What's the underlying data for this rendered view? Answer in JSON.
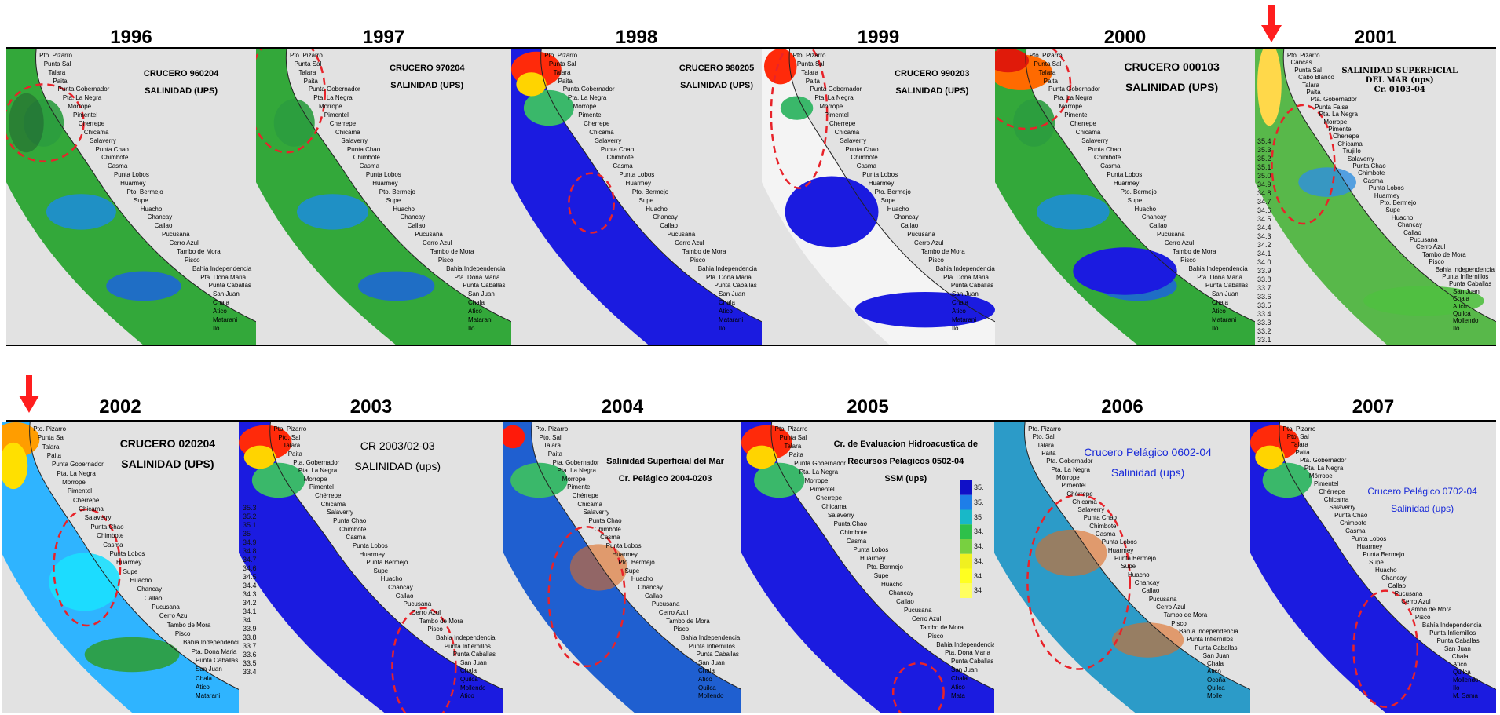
{
  "rows": [
    {
      "panels": [
        {
          "year": "1996",
          "title": [
            "CRUCERO 960204",
            "SALINIDAD (UPS)"
          ],
          "style": "bold",
          "places": [
            "Pto. Pizarro",
            "Punta Sal",
            "Talara",
            "Paita",
            "Punta Gobernador",
            "Pta. La Negra",
            "Morrope",
            "Pimentel",
            "Cherrepe",
            "Chicama",
            "Salaverry",
            "Punta Chao",
            "Chimbote",
            "Casma",
            "Punta Lobos",
            "Huarmey",
            "Pto. Bermejo",
            "Supe",
            "Huacho",
            "Chancay",
            "Callao",
            "Pucusana",
            "Cerro Azul",
            "Tambo de Mora",
            "Pisco",
            "Bahia Independencia",
            "Pta. Dona Maria",
            "Punta Caballas",
            "San Juan",
            "Chala",
            "Atico",
            "Matarani",
            "Ilo"
          ]
        },
        {
          "year": "1997",
          "title": [
            "CRUCERO 970204",
            "SALINIDAD (UPS)"
          ],
          "style": "bold",
          "places": [
            "Pto. Pizarro",
            "Punta Sal",
            "Talara",
            "Paita",
            "Punta Gobernador",
            "Pta. La Negra",
            "Morrope",
            "Pimentel",
            "Cherrepe",
            "Chicama",
            "Salaverry",
            "Punta Chao",
            "Chimbote",
            "Casma",
            "Punta Lobos",
            "Huarmey",
            "Pto. Bermejo",
            "Supe",
            "Huacho",
            "Chancay",
            "Callao",
            "Pucusana",
            "Cerro Azul",
            "Tambo de Mora",
            "Pisco",
            "Bahia Independencia",
            "Pta. Dona Maria",
            "Punta Caballas",
            "San Juan",
            "Chala",
            "Atico",
            "Matarani",
            "Ilo"
          ]
        },
        {
          "year": "1998",
          "title": [
            "CRUCERO 980205",
            "SALINIDAD (UPS)"
          ],
          "style": "bold",
          "places": [
            "Pto. Pizarro",
            "Punta Sal",
            "Talara",
            "Paita",
            "Punta Gobernador",
            "Pta. La Negra",
            "Morrope",
            "Pimentel",
            "Cherrepe",
            "Chicama",
            "Salaverry",
            "Punta Chao",
            "Chimbote",
            "Casma",
            "Punta Lobos",
            "Huarmey",
            "Pto. Bermejo",
            "Supe",
            "Huacho",
            "Chancay",
            "Callao",
            "Pucusana",
            "Cerro Azul",
            "Tambo de Mora",
            "Pisco",
            "Bahia Independencia",
            "Pta. Dona Maria",
            "Punta Caballas",
            "San Juan",
            "Chala",
            "Atico",
            "Matarani",
            "Ilo"
          ]
        },
        {
          "year": "1999",
          "title": [
            "CRUCERO 990203",
            "SALINIDAD (UPS)"
          ],
          "style": "bold",
          "places": [
            "Pto. Pizarro",
            "Punta Sal",
            "Talara",
            "Paita",
            "Punta Gobernador",
            "Pta. La Negra",
            "Morrope",
            "Pimentel",
            "Cherrepe",
            "Chicama",
            "Salaverry",
            "Punta Chao",
            "Chimbote",
            "Casma",
            "Punta Lobos",
            "Huarmey",
            "Pto. Bermejo",
            "Supe",
            "Huacho",
            "Chancay",
            "Callao",
            "Pucusana",
            "Cerro Azul",
            "Tambo de Mora",
            "Pisco",
            "Bahia Independencia",
            "Pta. Dona Maria",
            "Punta Caballas",
            "San Juan",
            "Chala",
            "Atico",
            "Matarani",
            "Ilo"
          ]
        },
        {
          "year": "2000",
          "title": [
            "CRUCERO 000103",
            "SALINIDAD (UPS)"
          ],
          "style": "big",
          "places": [
            "Pto. Pizarro",
            "Punta Sal",
            "Talara",
            "Paita",
            "Punta Gobernador",
            "Pta. La Negra",
            "Morrope",
            "Pimentel",
            "Cherrepe",
            "Chicama",
            "Salaverry",
            "Punta Chao",
            "Chimbote",
            "Casma",
            "Punta Lobos",
            "Huarmey",
            "Pto. Bermejo",
            "Supe",
            "Huacho",
            "Chancay",
            "Callao",
            "Pucusana",
            "Cerro Azul",
            "Tambo de Mora",
            "Pisco",
            "Bahia Independencia",
            "Pta. Dona Maria",
            "Punta Caballas",
            "San Juan",
            "Chala",
            "Atico",
            "Matarani",
            "Ilo"
          ]
        },
        {
          "year": "2001",
          "title": [
            "SALINIDAD SUPERFICIAL",
            "DEL MAR (ups)",
            "Cr. 0103-04"
          ],
          "style": "serif",
          "scale": [
            "35.4",
            "35.3",
            "35.2",
            "35.1",
            "35.0",
            "34.9",
            "34.8",
            "34.7",
            "34.6",
            "34.5",
            "34.4",
            "34.3",
            "34.2",
            "34.1",
            "34.0",
            "33.9",
            "33.8",
            "33.7",
            "33.6",
            "33.5",
            "33.4",
            "33.3",
            "33.2",
            "33.1"
          ],
          "places": [
            "Pto. Pizarro",
            "Cancas",
            "Punta Sal",
            "Cabo Blanco",
            "Talara",
            "Paita",
            "Pta. Gobernador",
            "Punta Falsa",
            "Pta. La Negra",
            "Morrope",
            "Pimentel",
            "Cherrepe",
            "Chicama",
            "Trujillo",
            "Salaverry",
            "Punta Chao",
            "Chimbote",
            "Casma",
            "Punta Lobos",
            "Huarmey",
            "Pto. Bermejo",
            "Supe",
            "Huacho",
            "Chancay",
            "Callao",
            "Pucusana",
            "Cerro Azul",
            "Tambo de Mora",
            "Pisco",
            "Bahia Independencia",
            "Punta Infiernillos",
            "Punta Caballas",
            "San Juan",
            "Chala",
            "Atico",
            "Quilca",
            "Mollendo",
            "Ilo"
          ]
        }
      ]
    },
    {
      "panels": [
        {
          "year": "2002",
          "title": [
            "CRUCERO 020204",
            "SALINIDAD (UPS)"
          ],
          "style": "big",
          "places": [
            "Pto. Pizarro",
            "Punta Sal",
            "Talara",
            "Paita",
            "Punta Gobernador",
            "Pta. La Negra",
            "Morrope",
            "Pimentel",
            "Chérrepe",
            "Chicama",
            "Salaverry",
            "Punta Chao",
            "Chimbote",
            "Casma",
            "Punta Lobos",
            "Huarmey",
            "Supe",
            "Huacho",
            "Chancay",
            "Callao",
            "Pucusana",
            "Cerro Azul",
            "Tambo de Mora",
            "Pisco",
            "Bahia Independencia",
            "Pta. Dona Maria",
            "Punta Caballas",
            "San Juan",
            "Chala",
            "Atico",
            "Matarani"
          ]
        },
        {
          "year": "2003",
          "title": [
            "CR 2003/02-03",
            "SALINIDAD (ups)"
          ],
          "style": "plain",
          "scale": [
            "35.3",
            "35.2",
            "35.1",
            "35",
            "34.9",
            "34.8",
            "34.7",
            "34.6",
            "34.5",
            "34.4",
            "34.3",
            "34.2",
            "34.1",
            "34",
            "33.9",
            "33.8",
            "33.7",
            "33.6",
            "33.5",
            "33.4"
          ],
          "places": [
            "Pto. Pizarro",
            "Pto. Sal",
            "Talara",
            "Paita",
            "Pta. Gobernador",
            "Pta. La Negra",
            "Morrope",
            "Pimentel",
            "Chérrepe",
            "Chicama",
            "Salaverry",
            "Punta Chao",
            "Chimbote",
            "Casma",
            "Punta Lobos",
            "Huarmey",
            "Punta Bermejo",
            "Supe",
            "Huacho",
            "Chancay",
            "Callao",
            "Pucusana",
            "Cerro Azul",
            "Tambo de Mora",
            "Pisco",
            "Bahía Independencia",
            "Punta Infiernillos",
            "Punta Caballas",
            "San Juan",
            "Chala",
            "Quilca",
            "Mollendo",
            "Atico"
          ]
        },
        {
          "year": "2004",
          "title": [
            "Salinidad Superficial del Mar",
            "Cr. Pelágico 2004-0203"
          ],
          "style": "bold",
          "places": [
            "Pto. Pizarro",
            "Pto. Sal",
            "Talara",
            "Paita",
            "Pta. Gobernador",
            "Pta. La Negra",
            "Morrope",
            "Pimentel",
            "Chérrepe",
            "Chicama",
            "Salaverry",
            "Punta Chao",
            "Chimbote",
            "Casma",
            "Punta Lobos",
            "Huarmey",
            "Pto. Bermejo",
            "Supe",
            "Huacho",
            "Chancay",
            "Callao",
            "Pucusana",
            "Cerro Azul",
            "Tambo de Mora",
            "Pisco",
            "Bahia Independencia",
            "Punta Infiernillos",
            "Punta Caballas",
            "San Juan",
            "Chala",
            "Atico",
            "Quilca",
            "Mollendo"
          ]
        },
        {
          "year": "2005",
          "title": [
            "Cr. de Evaluacion Hidroacustica de",
            "Recursos Pelagicos 0502-04",
            "SSM (ups)"
          ],
          "style": "bold",
          "legend": [
            "35.",
            "35.",
            "35",
            "34.",
            "34.",
            "34.",
            "34.",
            "34"
          ],
          "places": [
            "Pto. Pizarro",
            "Punta Sal",
            "Talara",
            "Paita",
            "Punta Gobernador",
            "Pta. La Negra",
            "Morrope",
            "Pimentel",
            "Cherrepe",
            "Chicama",
            "Salaverry",
            "Punta Chao",
            "Chimbote",
            "Casma",
            "Punta Lobos",
            "Huarmey",
            "Pto. Bermejo",
            "Supe",
            "Huacho",
            "Chancay",
            "Callao",
            "Pucusana",
            "Cerro Azul",
            "Tambo de Mora",
            "Pisco",
            "Bahia Independencia",
            "Pta. Dona Maria",
            "Punta Caballas",
            "San Juan",
            "Chala",
            "Atico",
            "Mata"
          ]
        },
        {
          "year": "2006",
          "title": [
            "Crucero Pelágico 0602-04",
            "Salinidad (ups)"
          ],
          "style": "blue",
          "places": [
            "Pto. Pizarro",
            "Pto. Sal",
            "Talara",
            "Paita",
            "Pta. Gobernador",
            "Pta. La Negra",
            "Mórrope",
            "Pimentel",
            "Chérrepe",
            "Chicama",
            "Salaverry",
            "Punta Chao",
            "Chimbote",
            "Casma",
            "Punta Lobos",
            "Huarmey",
            "Punta Bermejo",
            "Supe",
            "Huacho",
            "Chancay",
            "Callao",
            "Pucusana",
            "Cerro Azul",
            "Tambo de Mora",
            "Pisco",
            "Bahía Independencia",
            "Punta Infiernillos",
            "Punta Caballas",
            "San Juan",
            "Chala",
            "Atico",
            "Ocoña",
            "Quilca",
            "Molle"
          ]
        },
        {
          "year": "2007",
          "title": [
            "Crucero Pelágico 0702-04",
            "Salinidad (ups)"
          ],
          "style": "bluesm",
          "places": [
            "Pto. Pizarro",
            "Pto. Sal",
            "Talara",
            "Paita",
            "Pta. Gobernador",
            "Pta. La Negra",
            "Mórrope",
            "Pimentel",
            "Chérrepe",
            "Chicama",
            "Salaverry",
            "Punta Chao",
            "Chimbote",
            "Casma",
            "Punta Lobos",
            "Huarmey",
            "Punta Bermejo",
            "Supe",
            "Huacho",
            "Chancay",
            "Callao",
            "Pucusana",
            "Cerro Azul",
            "Tambo de Mora",
            "Pisco",
            "Bahía Independencia",
            "Punta Infiernillos",
            "Punta Caballas",
            "San Juan",
            "Chala",
            "Atico",
            "Quilca",
            "Mollendo",
            "Ilo",
            "M. Sama"
          ]
        }
      ]
    }
  ],
  "colors": {
    "arrow": "#ff1e1e",
    "ellipse": "#e8232a",
    "land": "#e2e2e2",
    "sea_blue": "#1a1adf",
    "sea_green": "#2fa83a"
  }
}
